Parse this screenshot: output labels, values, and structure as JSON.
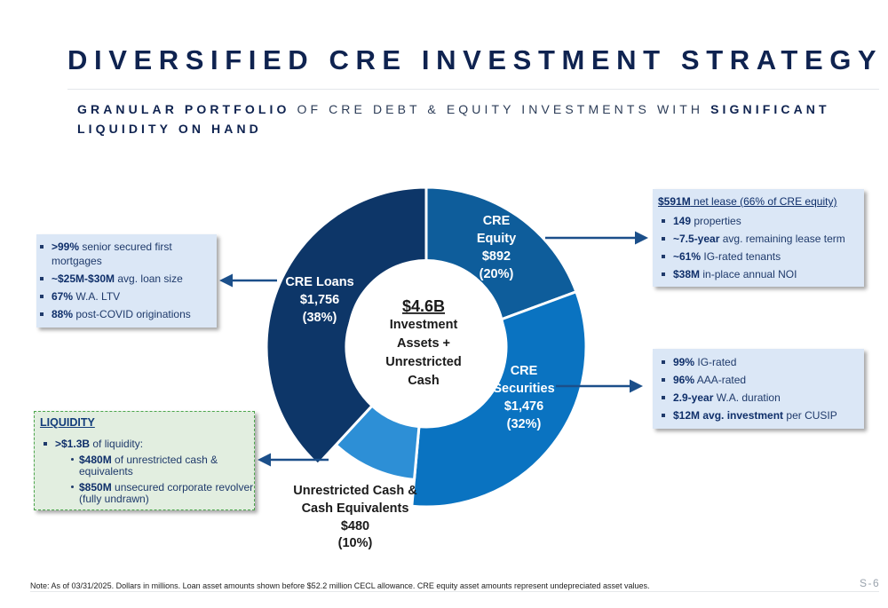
{
  "title": "DIVERSIFIED CRE INVESTMENT STRATEGY",
  "subtitle": {
    "bold1": "GRANULAR PORTFOLIO",
    "mid": " OF CRE DEBT & EQUITY INVESTMENTS WITH ",
    "bold2": "SIGNIFICANT LIQUIDITY ON HAND"
  },
  "chart_data": {
    "type": "pie",
    "center": {
      "total": "$4.6B",
      "lines": [
        "Investment",
        "Assets +",
        "Unrestricted",
        "Cash"
      ]
    },
    "slices": [
      {
        "name": "CRE Equity",
        "label_lines": [
          "CRE",
          "Equity"
        ],
        "value_label": "$892",
        "pct_label": "(20%)",
        "value": 892,
        "color": "#0e5d9b"
      },
      {
        "name": "CRE Securities",
        "label_lines": [
          "CRE",
          "Securities"
        ],
        "value_label": "$1,476",
        "pct_label": "(32%)",
        "value": 1476,
        "color": "#0a73c1"
      },
      {
        "name": "Unrestricted Cash & Cash Equivalents",
        "label_lines": [
          "Unrestricted Cash &",
          "Cash Equivalents"
        ],
        "value_label": "$480",
        "pct_label": "(10%)",
        "value": 480,
        "color": "#2d8fd6"
      },
      {
        "name": "CRE Loans",
        "label_lines": [
          "CRE Loans"
        ],
        "value_label": "$1,756",
        "pct_label": "(38%)",
        "value": 1756,
        "color": "#0d3668"
      }
    ]
  },
  "loans_box": {
    "items": [
      {
        "bold": ">99%",
        "text": " senior secured first mortgages"
      },
      {
        "bold": "~$25M-$30M",
        "text": " avg. loan size"
      },
      {
        "bold": "67%",
        "text": " W.A. LTV"
      },
      {
        "bold": "88%",
        "text": " post-COVID originations"
      }
    ]
  },
  "equity_box": {
    "heading_bold": "$591M",
    "heading_text": " net lease (66% of CRE equity)",
    "items": [
      {
        "bold": "149",
        "text": " properties"
      },
      {
        "bold": "~7.5-year",
        "text": " avg. remaining lease term"
      },
      {
        "bold": "~61%",
        "text": " IG-rated tenants"
      },
      {
        "bold": "$38M",
        "text": " in-place annual NOI"
      }
    ]
  },
  "securities_box": {
    "items": [
      {
        "bold": "99%",
        "text": " IG-rated"
      },
      {
        "bold": "96%",
        "text": " AAA-rated"
      },
      {
        "bold": "2.9-year",
        "text": " W.A. duration"
      },
      {
        "bold": "$12M avg. investment",
        "text": " per CUSIP"
      }
    ]
  },
  "liquidity_box": {
    "heading": "LIQUIDITY",
    "item": {
      "bold": ">$1.3B",
      "text": " of liquidity:"
    },
    "subitems": [
      {
        "bold": "$480M",
        "text": " of unrestricted cash & equivalents"
      },
      {
        "bold": "$850M",
        "text": " unsecured corporate revolver (fully undrawn)"
      }
    ]
  },
  "note": "Note: As of 03/31/2025. Dollars in millions. Loan asset amounts shown before $52.2 million CECL allowance. CRE equity asset amounts represent undepreciated asset values.",
  "page_number": "S-6",
  "colors": {
    "title": "#0f2350",
    "arrow": "#1b4f8a",
    "box_fill": "#dbe7f6",
    "liquidity_fill": "#e2eee0",
    "liquidity_border": "#4da64d"
  }
}
